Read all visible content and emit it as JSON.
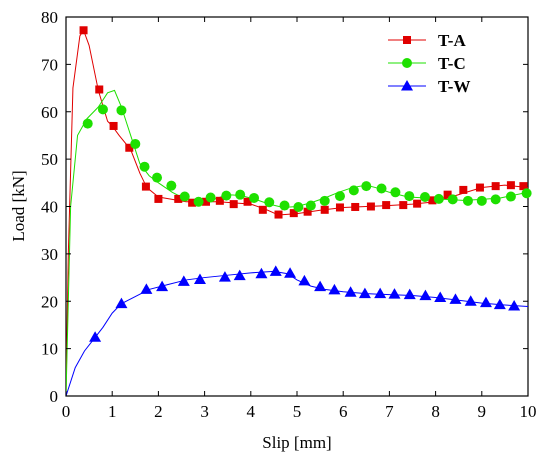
{
  "chart_data": {
    "type": "line",
    "title": "",
    "xlabel": "Slip [mm]",
    "ylabel": "Load [kN]",
    "xlim": [
      0,
      10
    ],
    "ylim": [
      0,
      80
    ],
    "x_ticks": [
      "0",
      "1",
      "2",
      "3",
      "4",
      "5",
      "6",
      "7",
      "8",
      "9",
      "10"
    ],
    "y_ticks": [
      "0",
      "10",
      "20",
      "30",
      "40",
      "50",
      "60",
      "70",
      "80"
    ],
    "grid": false,
    "legend_position": "top-right",
    "series": [
      {
        "name": "T-A",
        "color": "#e00000",
        "marker": "square",
        "line": [
          [
            0,
            0
          ],
          [
            0.05,
            30
          ],
          [
            0.15,
            65
          ],
          [
            0.3,
            76
          ],
          [
            0.38,
            77.2
          ],
          [
            0.5,
            74
          ],
          [
            0.7,
            64.5
          ],
          [
            0.9,
            58
          ],
          [
            1.0,
            57
          ],
          [
            1.15,
            55
          ],
          [
            1.4,
            52
          ],
          [
            1.6,
            47
          ],
          [
            1.75,
            44
          ],
          [
            2.0,
            42
          ],
          [
            2.3,
            41.5
          ],
          [
            2.6,
            41
          ],
          [
            3.0,
            41
          ],
          [
            3.3,
            41
          ],
          [
            3.6,
            40.8
          ],
          [
            4.0,
            40.5
          ],
          [
            4.3,
            39.5
          ],
          [
            4.6,
            38.2
          ],
          [
            5.0,
            38.5
          ],
          [
            5.5,
            39.2
          ],
          [
            6.0,
            39.8
          ],
          [
            6.5,
            40
          ],
          [
            7.0,
            40.2
          ],
          [
            7.5,
            40.5
          ],
          [
            8.0,
            41
          ],
          [
            8.5,
            42.5
          ],
          [
            9.0,
            44
          ],
          [
            9.5,
            44.5
          ],
          [
            10.0,
            44
          ]
        ],
        "points": [
          [
            0.38,
            77.2
          ],
          [
            0.72,
            64.7
          ],
          [
            1.03,
            57.0
          ],
          [
            1.37,
            52.4
          ],
          [
            1.73,
            44.2
          ],
          [
            2.0,
            41.6
          ],
          [
            2.43,
            41.6
          ],
          [
            2.73,
            40.8
          ],
          [
            3.03,
            41.0
          ],
          [
            3.33,
            41.2
          ],
          [
            3.63,
            40.5
          ],
          [
            3.93,
            41.0
          ],
          [
            4.26,
            39.3
          ],
          [
            4.6,
            38.3
          ],
          [
            4.93,
            38.6
          ],
          [
            5.23,
            38.9
          ],
          [
            5.6,
            39.3
          ],
          [
            5.93,
            39.8
          ],
          [
            6.26,
            39.9
          ],
          [
            6.6,
            40.0
          ],
          [
            6.93,
            40.3
          ],
          [
            7.3,
            40.3
          ],
          [
            7.6,
            40.6
          ],
          [
            7.93,
            41.3
          ],
          [
            8.26,
            42.5
          ],
          [
            8.6,
            43.5
          ],
          [
            8.96,
            44.0
          ],
          [
            9.3,
            44.3
          ],
          [
            9.63,
            44.5
          ],
          [
            9.9,
            44.3
          ]
        ]
      },
      {
        "name": "T-C",
        "color": "#1ee000",
        "marker": "circle",
        "line": [
          [
            0,
            0
          ],
          [
            0.1,
            40
          ],
          [
            0.25,
            55
          ],
          [
            0.45,
            58.5
          ],
          [
            0.7,
            61
          ],
          [
            0.9,
            64
          ],
          [
            1.05,
            64.5
          ],
          [
            1.2,
            61
          ],
          [
            1.4,
            55
          ],
          [
            1.6,
            49
          ],
          [
            1.8,
            46.5
          ],
          [
            2.0,
            45
          ],
          [
            2.3,
            43
          ],
          [
            2.6,
            41.5
          ],
          [
            2.9,
            41
          ],
          [
            3.2,
            41.5
          ],
          [
            3.5,
            42.5
          ],
          [
            3.8,
            42.3
          ],
          [
            4.1,
            41.5
          ],
          [
            4.4,
            40.5
          ],
          [
            4.7,
            39.8
          ],
          [
            5.0,
            40
          ],
          [
            5.3,
            40.8
          ],
          [
            5.6,
            41.8
          ],
          [
            5.9,
            43
          ],
          [
            6.2,
            44
          ],
          [
            6.5,
            44.5
          ],
          [
            6.7,
            44
          ],
          [
            7.0,
            43
          ],
          [
            7.4,
            42
          ],
          [
            7.8,
            41.8
          ],
          [
            8.2,
            41.5
          ],
          [
            8.6,
            41.3
          ],
          [
            9.0,
            41.5
          ],
          [
            9.4,
            41.8
          ],
          [
            10.0,
            43
          ]
        ],
        "points": [
          [
            0.47,
            57.5
          ],
          [
            0.8,
            60.5
          ],
          [
            1.2,
            60.3
          ],
          [
            1.5,
            53.2
          ],
          [
            1.7,
            48.4
          ],
          [
            1.97,
            46.1
          ],
          [
            2.28,
            44.4
          ],
          [
            2.57,
            42.1
          ],
          [
            2.87,
            41.0
          ],
          [
            3.13,
            41.9
          ],
          [
            3.47,
            42.3
          ],
          [
            3.77,
            42.5
          ],
          [
            4.07,
            41.8
          ],
          [
            4.4,
            40.9
          ],
          [
            4.73,
            40.2
          ],
          [
            5.03,
            39.9
          ],
          [
            5.3,
            40.2
          ],
          [
            5.6,
            41.2
          ],
          [
            5.93,
            42.2
          ],
          [
            6.23,
            43.4
          ],
          [
            6.5,
            44.3
          ],
          [
            6.83,
            43.8
          ],
          [
            7.13,
            43.0
          ],
          [
            7.43,
            42.2
          ],
          [
            7.77,
            42.0
          ],
          [
            8.07,
            41.6
          ],
          [
            8.37,
            41.5
          ],
          [
            8.7,
            41.2
          ],
          [
            9.0,
            41.2
          ],
          [
            9.3,
            41.5
          ],
          [
            9.63,
            42.1
          ],
          [
            9.97,
            42.8
          ]
        ]
      },
      {
        "name": "T-W",
        "color": "#0000ff",
        "marker": "triangle",
        "line": [
          [
            0,
            0
          ],
          [
            0.2,
            6
          ],
          [
            0.4,
            9.5
          ],
          [
            0.6,
            12
          ],
          [
            0.8,
            14.5
          ],
          [
            1.0,
            17.5
          ],
          [
            1.2,
            19.5
          ],
          [
            1.5,
            21
          ],
          [
            1.8,
            22.5
          ],
          [
            2.2,
            23.5
          ],
          [
            2.6,
            24.5
          ],
          [
            3.0,
            25
          ],
          [
            3.5,
            25.5
          ],
          [
            4.0,
            26
          ],
          [
            4.5,
            26.3
          ],
          [
            4.8,
            25.8
          ],
          [
            5.0,
            24.5
          ],
          [
            5.3,
            23.2
          ],
          [
            5.6,
            22.5
          ],
          [
            6.0,
            22
          ],
          [
            6.5,
            21.6
          ],
          [
            7.0,
            21.4
          ],
          [
            7.5,
            21.2
          ],
          [
            8.0,
            20.8
          ],
          [
            8.5,
            20.2
          ],
          [
            9.0,
            19.6
          ],
          [
            9.5,
            19.2
          ],
          [
            10.0,
            18.9
          ]
        ],
        "points": [
          [
            0.63,
            12.4
          ],
          [
            1.2,
            19.5
          ],
          [
            1.74,
            22.5
          ],
          [
            2.08,
            23.1
          ],
          [
            2.55,
            24.2
          ],
          [
            2.9,
            24.6
          ],
          [
            3.44,
            25.1
          ],
          [
            3.76,
            25.4
          ],
          [
            4.23,
            25.8
          ],
          [
            4.54,
            26.3
          ],
          [
            4.85,
            25.9
          ],
          [
            5.16,
            24.3
          ],
          [
            5.5,
            23.1
          ],
          [
            5.81,
            22.4
          ],
          [
            6.16,
            21.9
          ],
          [
            6.47,
            21.6
          ],
          [
            6.8,
            21.6
          ],
          [
            7.11,
            21.5
          ],
          [
            7.44,
            21.4
          ],
          [
            7.78,
            21.2
          ],
          [
            8.1,
            20.8
          ],
          [
            8.43,
            20.4
          ],
          [
            8.76,
            20.0
          ],
          [
            9.09,
            19.7
          ],
          [
            9.39,
            19.3
          ],
          [
            9.7,
            19.0
          ]
        ]
      }
    ]
  }
}
